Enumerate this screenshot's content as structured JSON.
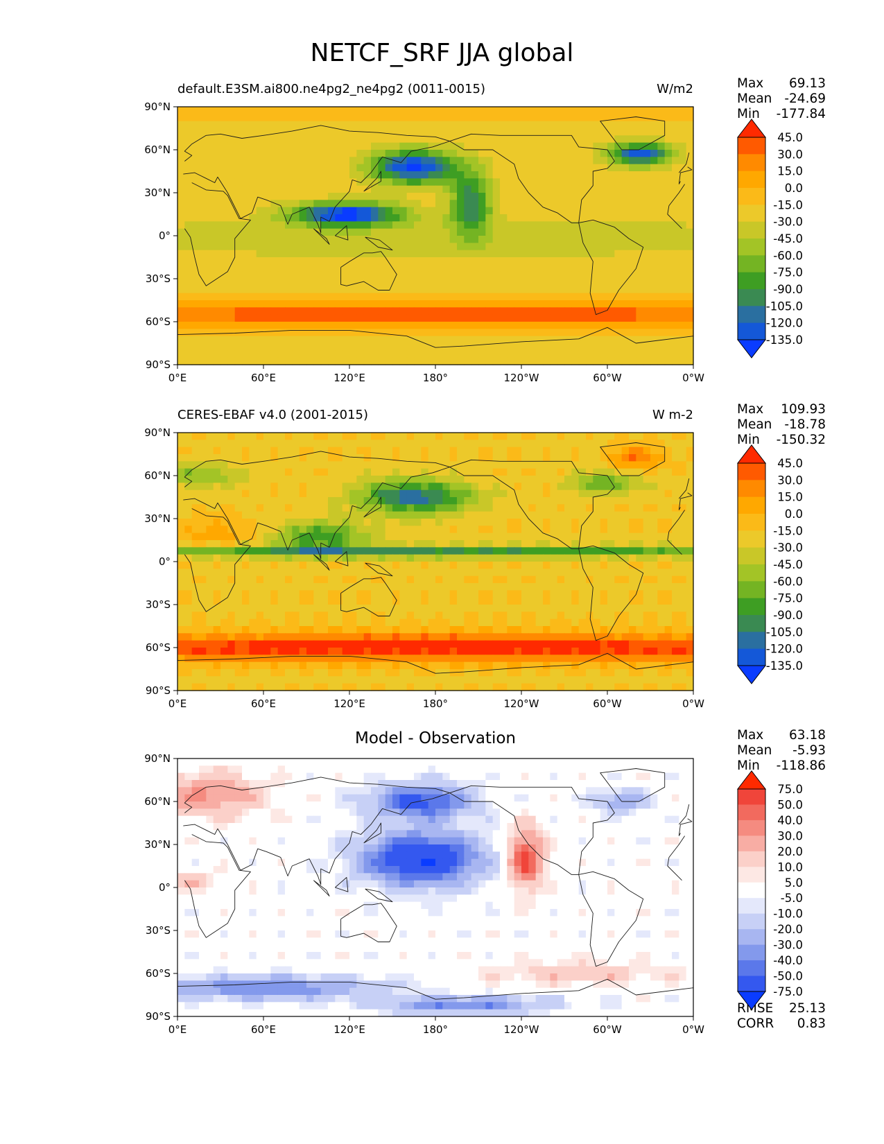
{
  "title": "NETCF_SRF JJA global",
  "panels": [
    {
      "left_title": "default.E3SM.ai800.ne4pg2_ne4pg2 (0011-0015)",
      "right_title": "W/m2",
      "center_title": "",
      "stats": [
        [
          "Max",
          "69.13"
        ],
        [
          "Mean",
          "-24.69"
        ],
        [
          "Min",
          "-177.84"
        ]
      ],
      "footer_stats": [],
      "colorbar": {
        "levels": [
          "45.0",
          "30.0",
          "15.0",
          "0.0",
          "-15.0",
          "-30.0",
          "-45.0",
          "-60.0",
          "-75.0",
          "-90.0",
          "-105.0",
          "-120.0",
          "-135.0"
        ],
        "colors": [
          "#ff2a00",
          "#ff5a00",
          "#ff8a00",
          "#ffa800",
          "#fbba18",
          "#ecc92a",
          "#c9c728",
          "#a3c426",
          "#74b423",
          "#3e9e23",
          "#3a8a52",
          "#2a6fa0",
          "#1458d8",
          "#0a3cff"
        ]
      }
    },
    {
      "left_title": "CERES-EBAF v4.0 (2001-2015)",
      "right_title": "W m-2",
      "center_title": "",
      "stats": [
        [
          "Max",
          "109.93"
        ],
        [
          "Mean",
          "-18.78"
        ],
        [
          "Min",
          "-150.32"
        ]
      ],
      "footer_stats": [],
      "colorbar": {
        "levels": [
          "45.0",
          "30.0",
          "15.0",
          "0.0",
          "-15.0",
          "-30.0",
          "-45.0",
          "-60.0",
          "-75.0",
          "-90.0",
          "-105.0",
          "-120.0",
          "-135.0"
        ],
        "colors": [
          "#ff2a00",
          "#ff5a00",
          "#ff8a00",
          "#ffa800",
          "#fbba18",
          "#ecc92a",
          "#c9c728",
          "#a3c426",
          "#74b423",
          "#3e9e23",
          "#3a8a52",
          "#2a6fa0",
          "#1458d8",
          "#0a3cff"
        ]
      }
    },
    {
      "left_title": "",
      "right_title": "",
      "center_title": "Model - Observation",
      "stats": [
        [
          "Max",
          "63.18"
        ],
        [
          "Mean",
          "-5.93"
        ],
        [
          "Min",
          "-118.86"
        ]
      ],
      "footer_stats": [
        [
          "RMSE",
          "25.13"
        ],
        [
          "CORR",
          "0.83"
        ]
      ],
      "colorbar": {
        "levels": [
          "75.0",
          "50.0",
          "40.0",
          "30.0",
          "20.0",
          "10.0",
          "5.0",
          "-5.0",
          "-10.0",
          "-20.0",
          "-30.0",
          "-40.0",
          "-50.0",
          "-75.0"
        ],
        "colors": [
          "#ff2a00",
          "#f0453a",
          "#f26a5e",
          "#f58b80",
          "#f8ada4",
          "#fbd0c9",
          "#fde8e4",
          "#ffffff",
          "#e4e8fb",
          "#c7d0f6",
          "#a8b6f1",
          "#8399ec",
          "#5b78ea",
          "#3458ef",
          "#0a3cff"
        ]
      }
    }
  ],
  "axes": {
    "x_ticks": [
      "0°E",
      "60°E",
      "120°E",
      "180°",
      "120°W",
      "60°W",
      "0°W"
    ],
    "y_ticks": [
      "90°N",
      "60°N",
      "30°N",
      "0°",
      "30°S",
      "60°S",
      "90°S"
    ]
  },
  "chart_data": [
    {
      "type": "heatmap",
      "title": "default.E3SM.ai800.ne4pg2_ne4pg2 (0011-0015)",
      "units": "W/m2",
      "x_range": [
        0,
        360
      ],
      "y_range": [
        -90,
        90
      ],
      "contour_levels": [
        -135,
        -120,
        -105,
        -90,
        -75,
        -60,
        -45,
        -30,
        -15,
        0,
        15,
        30,
        45
      ],
      "extend": "both",
      "max": 69.13,
      "mean": -24.69,
      "min": -177.84
    },
    {
      "type": "heatmap",
      "title": "CERES-EBAF v4.0 (2001-2015)",
      "units": "W m-2",
      "x_range": [
        0,
        360
      ],
      "y_range": [
        -90,
        90
      ],
      "contour_levels": [
        -135,
        -120,
        -105,
        -90,
        -75,
        -60,
        -45,
        -30,
        -15,
        0,
        15,
        30,
        45
      ],
      "extend": "both",
      "max": 109.93,
      "mean": -18.78,
      "min": -150.32
    },
    {
      "type": "heatmap",
      "title": "Model - Observation",
      "x_range": [
        0,
        360
      ],
      "y_range": [
        -90,
        90
      ],
      "contour_levels": [
        -75,
        -50,
        -40,
        -30,
        -20,
        -10,
        -5,
        5,
        10,
        20,
        30,
        40,
        50,
        75
      ],
      "extend": "both",
      "max": 63.18,
      "mean": -5.93,
      "min": -118.86,
      "rmse": 25.13,
      "corr": 0.83
    }
  ]
}
